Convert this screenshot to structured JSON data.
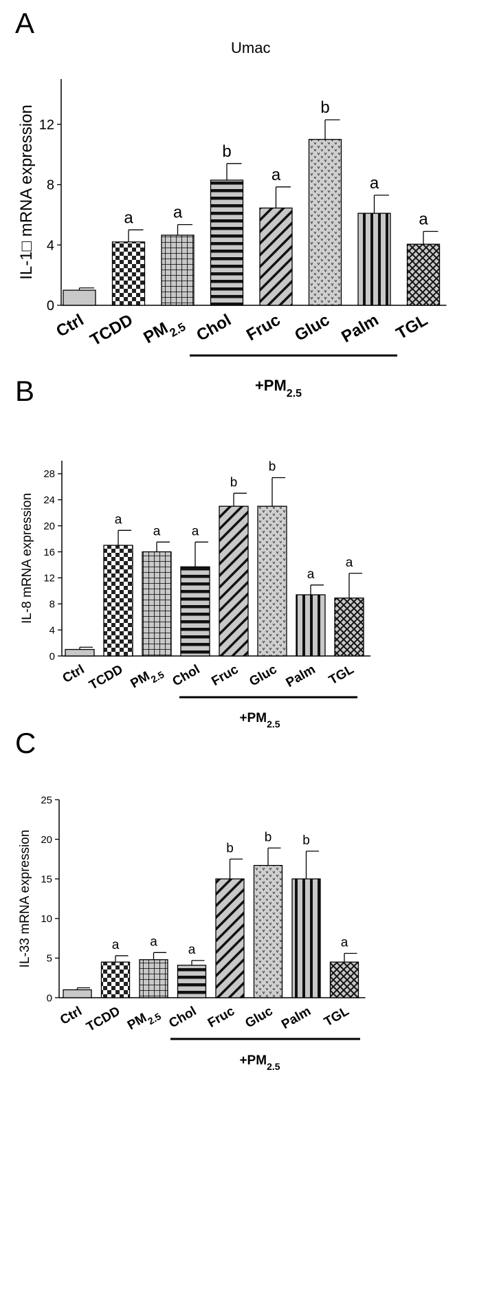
{
  "chart_data": [
    {
      "panel": "A",
      "type": "bar",
      "title": "Umac",
      "ylabel": "IL-1□ mRNA expression",
      "ylim": [
        0,
        15
      ],
      "yticks": [
        "0",
        "4",
        "8",
        "12"
      ],
      "categories": [
        "Ctrl",
        "TCDD",
        "PM2.5",
        "Chol",
        "Fruc",
        "Gluc",
        "Palm",
        "TGL"
      ],
      "values": [
        1.0,
        4.2,
        4.65,
        8.3,
        6.45,
        11.0,
        6.1,
        4.05
      ],
      "errors": [
        0.15,
        0.8,
        0.7,
        1.1,
        1.4,
        1.3,
        1.2,
        0.85
      ],
      "significance": [
        "",
        "a",
        "a",
        "b",
        "a",
        "b",
        "a",
        "a"
      ],
      "group_label": "+PM2.5",
      "grid": false
    },
    {
      "panel": "B",
      "type": "bar",
      "title": "",
      "ylabel": "IL-8 mRNA expression",
      "ylim": [
        0,
        30
      ],
      "yticks": [
        "0",
        "4",
        "8",
        "12",
        "16",
        "20",
        "24",
        "28"
      ],
      "categories": [
        "Ctrl",
        "TCDD",
        "PM2.5",
        "Chol",
        "Fruc",
        "Gluc",
        "Palm",
        "TGL"
      ],
      "values": [
        1.0,
        17.0,
        16.0,
        13.7,
        23.0,
        23.0,
        9.4,
        8.9
      ],
      "errors": [
        0.35,
        2.3,
        1.5,
        3.8,
        2.0,
        4.4,
        1.5,
        3.8
      ],
      "significance": [
        "",
        "a",
        "a",
        "a",
        "b",
        "b",
        "a",
        "a"
      ],
      "group_label": "+PM2.5",
      "grid": false
    },
    {
      "panel": "C",
      "type": "bar",
      "title": "",
      "ylabel": "IL-33 mRNA expression",
      "ylim": [
        0,
        25
      ],
      "yticks": [
        "0",
        "5",
        "10",
        "15",
        "20",
        "25"
      ],
      "categories": [
        "Ctrl",
        "TCDD",
        "PM2.5",
        "Chol",
        "Fruc",
        "Gluc",
        "Palm",
        "TGL"
      ],
      "values": [
        1.0,
        4.5,
        4.8,
        4.1,
        15.0,
        16.7,
        15.0,
        4.5
      ],
      "errors": [
        0.25,
        0.8,
        0.9,
        0.6,
        2.5,
        2.2,
        3.5,
        1.1
      ],
      "significance": [
        "",
        "a",
        "a",
        "a",
        "b",
        "b",
        "b",
        "a"
      ],
      "group_label": "+PM2.5",
      "grid": false
    }
  ],
  "colors": {
    "bar_fill": "#c8c8c8",
    "ink": "#000000"
  },
  "patterns": [
    "plain-gray",
    "checkerboard",
    "grid",
    "horizontal-stripes",
    "diagonal-stripes",
    "v-dots",
    "vertical-stripes",
    "crosshatch-diamond"
  ]
}
